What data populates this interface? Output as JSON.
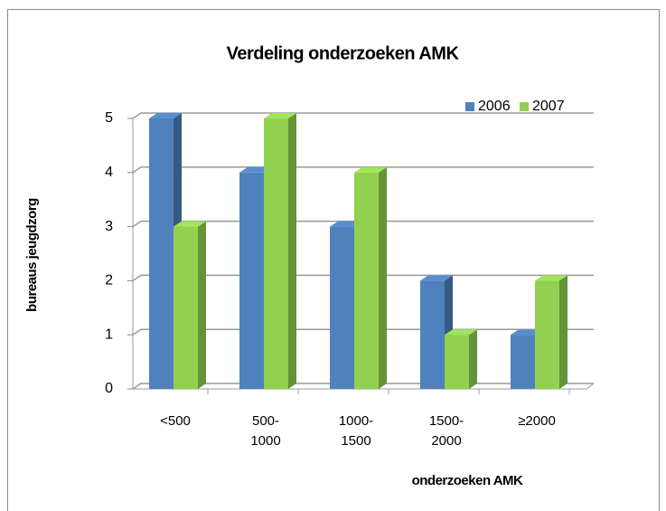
{
  "chart_data": {
    "type": "bar3d",
    "title": "Verdeling onderzoeken AMK",
    "x_label": "onderzoeken AMK",
    "y_label": "bureaus jeugdzorg",
    "categories": [
      "<500",
      "500-1000",
      "1000-1500",
      "1500-2000",
      "≥2000"
    ],
    "series": [
      {
        "name": "2006",
        "color": "#4f81bd",
        "values": [
          5,
          4,
          3,
          2,
          1
        ]
      },
      {
        "name": "2007",
        "color": "#92d050",
        "values": [
          3,
          5,
          4,
          1,
          2
        ]
      }
    ],
    "ylim": [
      0,
      5
    ],
    "yticks": [
      0,
      1,
      2,
      3,
      4,
      5
    ],
    "grid": true,
    "legend": "top-right"
  }
}
